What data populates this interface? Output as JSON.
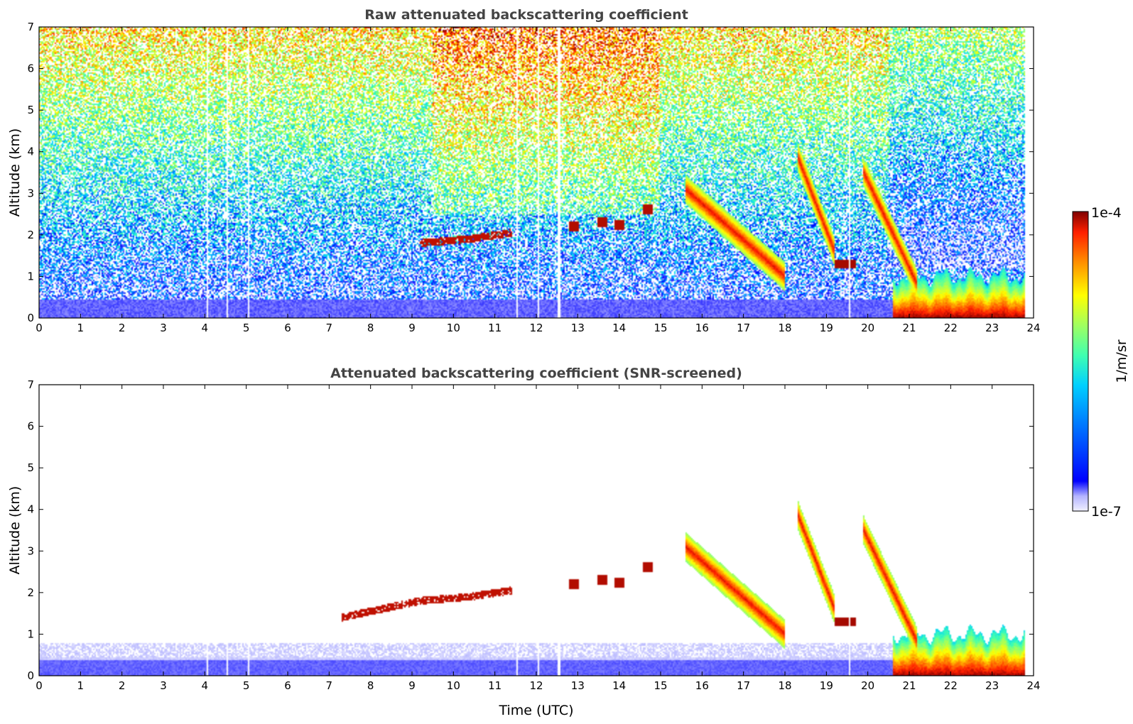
{
  "chart_data": [
    {
      "type": "heatmap",
      "title": "Raw attenuated backscattering coefficient",
      "xlabel": "",
      "ylabel": "Altitude (km)",
      "xlim": [
        0,
        24
      ],
      "ylim": [
        0,
        7
      ],
      "xticks": [
        "0",
        "1",
        "2",
        "3",
        "4",
        "5",
        "6",
        "7",
        "8",
        "9",
        "10",
        "11",
        "12",
        "13",
        "14",
        "15",
        "16",
        "17",
        "18",
        "19",
        "20",
        "21",
        "22",
        "23",
        "24"
      ],
      "yticks": [
        "0",
        "1",
        "2",
        "3",
        "4",
        "5",
        "6",
        "7"
      ],
      "noise": "high",
      "features": [
        {
          "kind": "boundary_layer",
          "t0": 0,
          "t1": 20.6,
          "z": 0.45
        },
        {
          "kind": "mixed_layer",
          "t0": 20.6,
          "t1": 23.8,
          "z": 1.0
        },
        {
          "kind": "aerosol_layer",
          "segments": [
            [
              9.2,
              1.8
            ],
            [
              10.4,
              1.9
            ],
            [
              11.4,
              2.05
            ]
          ]
        },
        {
          "kind": "cloud_fragments",
          "points": [
            [
              12.9,
              2.2
            ],
            [
              13.6,
              2.3
            ],
            [
              14.0,
              2.25
            ],
            [
              14.7,
              2.6
            ]
          ]
        },
        {
          "kind": "descending_plume",
          "t0": 15.6,
          "t1": 18.0,
          "z0": 3.1,
          "z1": 1.0
        },
        {
          "kind": "descending_plume",
          "t0": 18.3,
          "t1": 19.2,
          "z0": 3.9,
          "z1": 1.6
        },
        {
          "kind": "descending_plume",
          "t0": 19.9,
          "t1": 21.2,
          "z0": 3.5,
          "z1": 0.8
        },
        {
          "kind": "thin_layer",
          "t0": 19.2,
          "t1": 19.7,
          "z": 1.3
        },
        {
          "kind": "data_gaps",
          "times": [
            4.05,
            4.55,
            5.05,
            11.55,
            12.05,
            12.55,
            19.55
          ]
        }
      ]
    },
    {
      "type": "heatmap",
      "title": "Attenuated backscattering coefficient (SNR-screened)",
      "xlabel": "Time (UTC)",
      "ylabel": "Altitude (km)",
      "xlim": [
        0,
        24
      ],
      "ylim": [
        0,
        7
      ],
      "xticks": [
        "0",
        "1",
        "2",
        "3",
        "4",
        "5",
        "6",
        "7",
        "8",
        "9",
        "10",
        "11",
        "12",
        "13",
        "14",
        "15",
        "16",
        "17",
        "18",
        "19",
        "20",
        "21",
        "22",
        "23",
        "24"
      ],
      "yticks": [
        "0",
        "1",
        "2",
        "3",
        "4",
        "5",
        "6",
        "7"
      ],
      "noise": "screened",
      "features": [
        {
          "kind": "boundary_layer",
          "t0": 0,
          "t1": 20.6,
          "z": 0.8
        },
        {
          "kind": "mixed_layer",
          "t0": 20.6,
          "t1": 23.8,
          "z": 1.0
        },
        {
          "kind": "aerosol_layer",
          "segments": [
            [
              7.3,
              1.4
            ],
            [
              9.2,
              1.8
            ],
            [
              10.4,
              1.9
            ],
            [
              11.4,
              2.05
            ]
          ]
        },
        {
          "kind": "cloud_fragments",
          "points": [
            [
              12.9,
              2.2
            ],
            [
              13.6,
              2.3
            ],
            [
              14.0,
              2.25
            ],
            [
              14.7,
              2.6
            ]
          ]
        },
        {
          "kind": "descending_plume",
          "t0": 15.6,
          "t1": 18.0,
          "z0": 3.1,
          "z1": 1.0
        },
        {
          "kind": "descending_plume",
          "t0": 18.3,
          "t1": 19.2,
          "z0": 3.9,
          "z1": 1.6
        },
        {
          "kind": "descending_plume",
          "t0": 19.9,
          "t1": 21.2,
          "z0": 3.5,
          "z1": 0.8
        },
        {
          "kind": "thin_layer",
          "t0": 19.2,
          "t1": 19.7,
          "z": 1.3
        },
        {
          "kind": "data_gaps",
          "times": [
            4.05,
            4.55,
            5.05,
            11.55,
            12.05,
            12.55,
            19.55
          ]
        }
      ]
    }
  ],
  "colorbar": {
    "label": "1/m/sr",
    "max_label": "1e-4",
    "min_label": "1e-7",
    "colors": [
      "#f0f0ff",
      "#b4b4ff",
      "#0000ff",
      "#0080ff",
      "#00d0ff",
      "#40ffb0",
      "#a0ff60",
      "#ffff00",
      "#ff9000",
      "#ff2000",
      "#7f0000"
    ]
  }
}
